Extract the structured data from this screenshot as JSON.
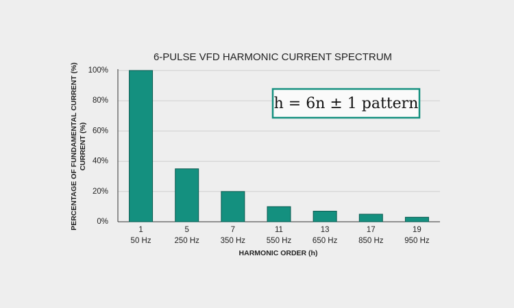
{
  "chart_data": {
    "type": "bar",
    "title": "6-PULSE VFD HARMONIC CURRENT SPECTRUM",
    "x_label": "HARMONIC ORDER (h)",
    "y_label": [
      "PERCENTAGE OF FUNDAMENTAL CURRENT (%)",
      "CURRENT (%)"
    ],
    "annotation": "h = 6n ± 1 pattern",
    "categories": [
      "1",
      "5",
      "7",
      "11",
      "13",
      "17",
      "19"
    ],
    "category_sublabels": [
      "50 Hz",
      "250 Hz",
      "350 Hz",
      "550 Hz",
      "650 Hz",
      "850 Hz",
      "950 Hz"
    ],
    "values": [
      100,
      35,
      20,
      10,
      7,
      5,
      3
    ],
    "color": "#14907f",
    "ylim": [
      0,
      100
    ],
    "yticks": [
      {
        "value": 0,
        "label": "0%"
      },
      {
        "value": 20,
        "label": "20%"
      },
      {
        "value": 40,
        "label": "40%"
      },
      {
        "value": 60,
        "label": "60%"
      },
      {
        "value": 80,
        "label": "80%"
      },
      {
        "value": 100,
        "label": "100%"
      }
    ],
    "grid": true
  }
}
